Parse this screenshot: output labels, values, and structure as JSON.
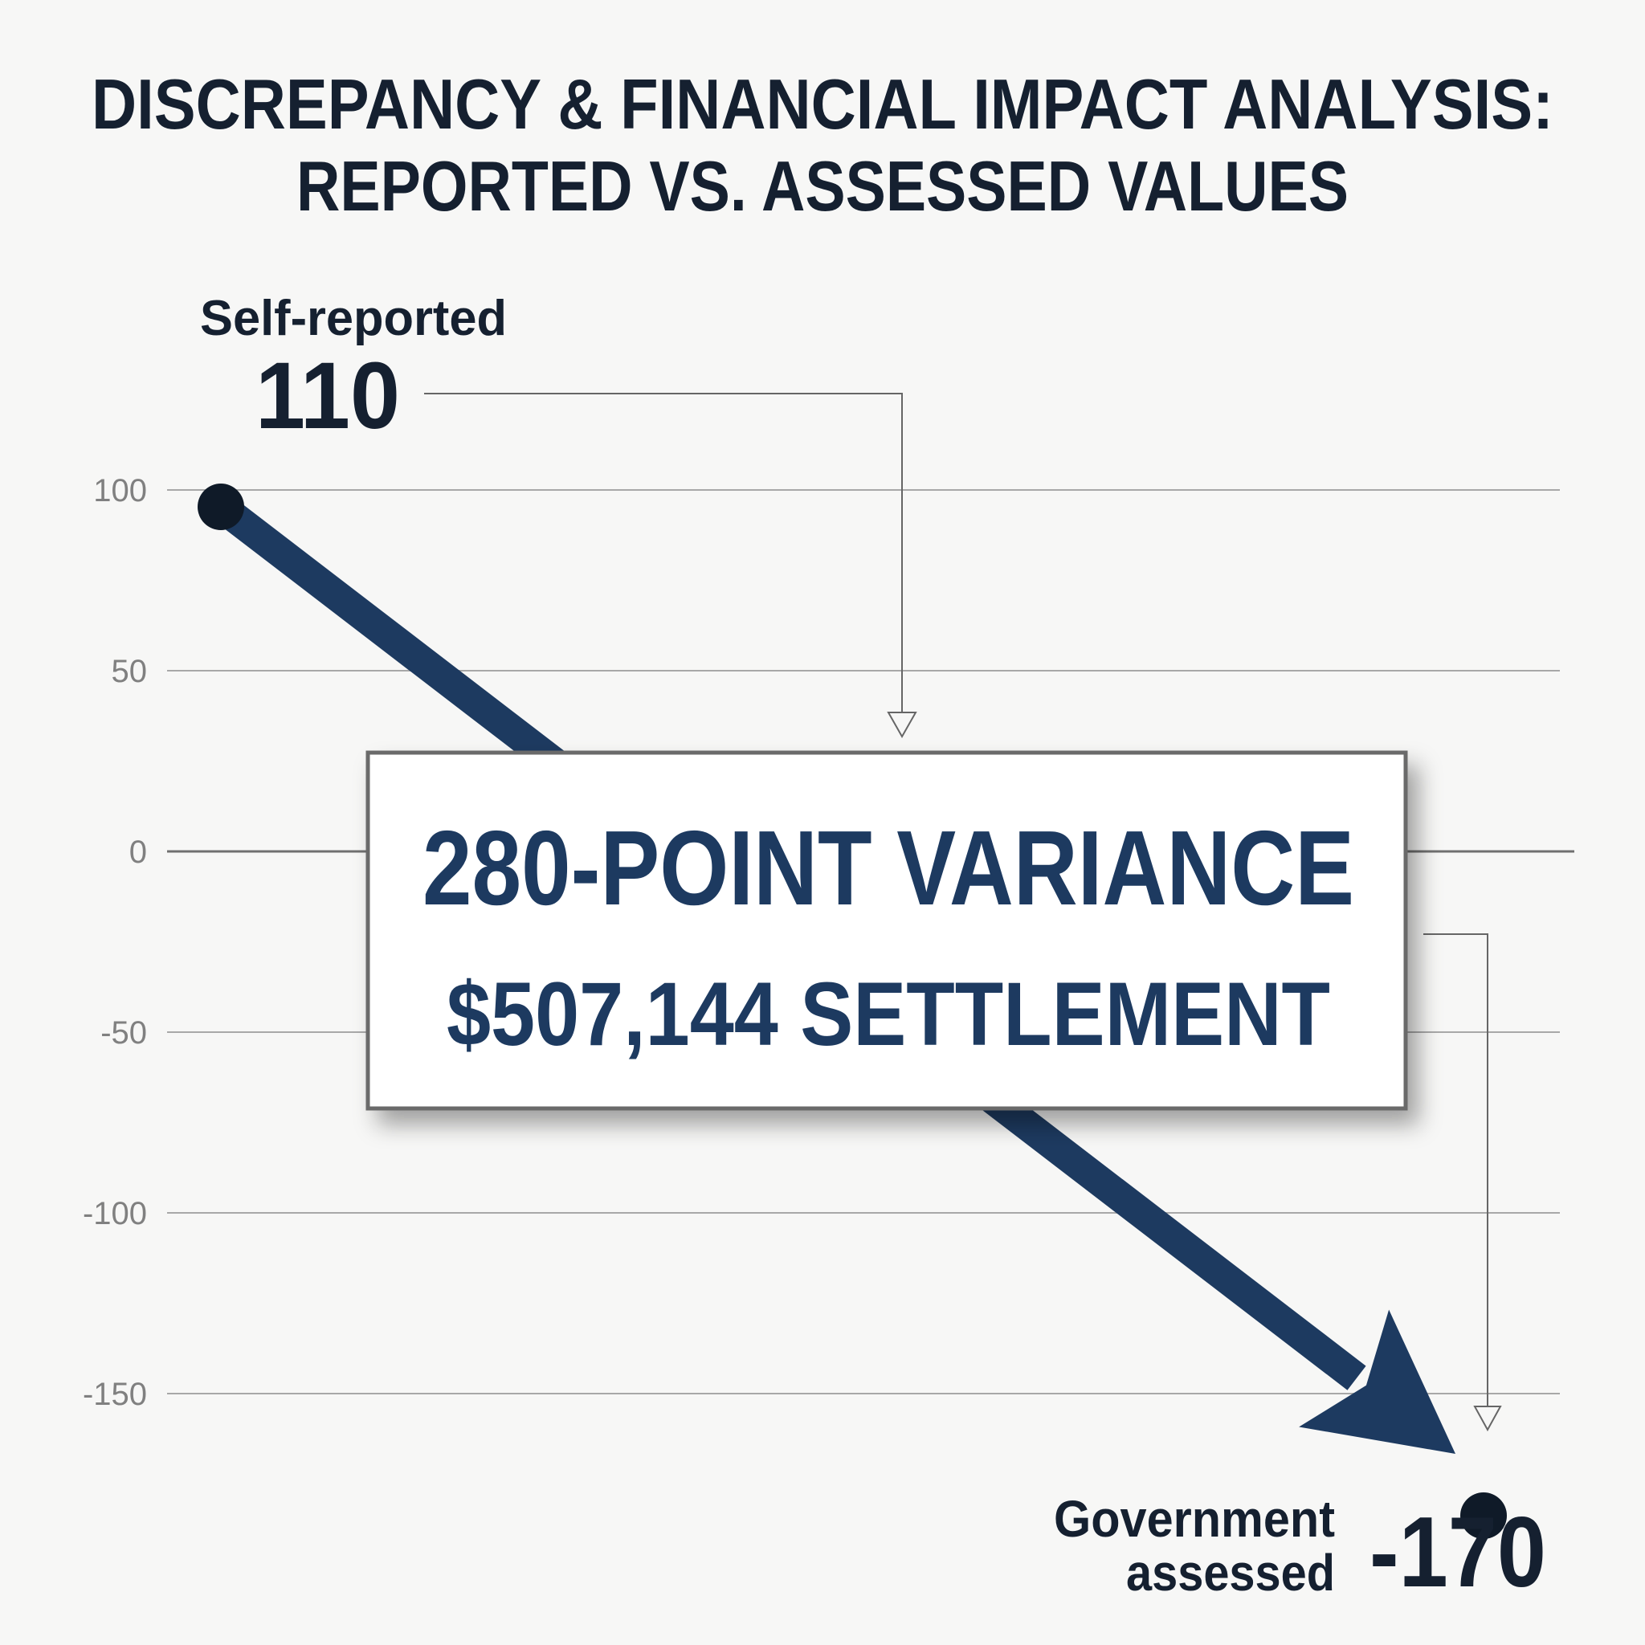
{
  "chart_data": {
    "type": "line",
    "title_lines": [
      "DISCREPANCY & FINANCIAL IMPACT ANALYSIS:",
      "REPORTED VS. ASSESSED VALUES"
    ],
    "xlabel": "",
    "ylabel": "",
    "ylim": [
      -190,
      125
    ],
    "yticks": [
      100,
      50,
      0,
      -50,
      -100,
      -150
    ],
    "ytick_labels": [
      "100",
      "50",
      "0",
      "-50",
      "-100",
      "-150"
    ],
    "grid": true,
    "legend": "none",
    "series": [
      {
        "points": [
          {
            "label_lines": [
              "Self-reported"
            ],
            "value": 110,
            "value_label": "110"
          },
          {
            "label_lines": [
              "Government",
              "assessed"
            ],
            "value": -170,
            "value_label": "-170"
          }
        ]
      }
    ],
    "callout": {
      "headline": "280-POINT VARIANCE",
      "subline": "$507,144 SETTLEMENT"
    },
    "colors": {
      "arrow": "#1d3a60",
      "point": "#0f1a28",
      "grid": "#a8a8a8",
      "zero_line": "#707070",
      "title": "#152030",
      "callout_text": "#1d3a60",
      "callout_border": "#6b6b6b",
      "background": "#f7f7f6"
    }
  }
}
